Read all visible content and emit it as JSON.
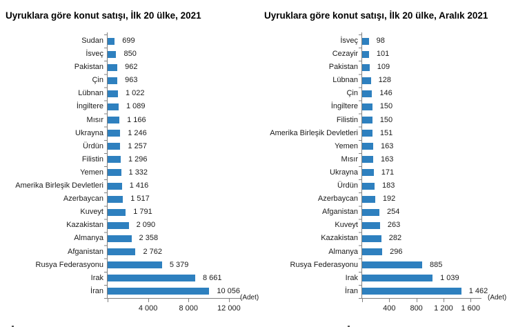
{
  "colors": {
    "bar": "#2e80bf",
    "axis": "#7f7f7f",
    "title_text": "#000000",
    "label_text": "#1a1a1a",
    "background": "#ffffff"
  },
  "chart_data": [
    {
      "type": "bar",
      "orientation": "horizontal",
      "title": "Uyruklara göre konut satışı, İlk 20 ülke, 2021",
      "unit_label": "(Adet)",
      "grid": false,
      "legend": "none",
      "xlim": [
        0,
        13100
      ],
      "categories": [
        "Sudan",
        "İsveç",
        "Pakistan",
        "Çin",
        "Lübnan",
        "İngiltere",
        "Mısır",
        "Ukrayna",
        "Ürdün",
        "Filistin",
        "Yemen",
        "Amerika Birleşik Devletleri",
        "Azerbaycan",
        "Kuveyt",
        "Kazakistan",
        "Almanya",
        "Afganistan",
        "Rusya Federasyonu",
        "Irak",
        "İran"
      ],
      "values": [
        699,
        850,
        962,
        963,
        1022,
        1089,
        1166,
        1246,
        1257,
        1296,
        1332,
        1416,
        1517,
        1791,
        2090,
        2358,
        2762,
        5379,
        8661,
        10056
      ],
      "value_labels": [
        "699",
        "850",
        "962",
        "963",
        "1 022",
        "1 089",
        "1 166",
        "1 246",
        "1 257",
        "1 296",
        "1 332",
        "1 416",
        "1 517",
        "1 791",
        "2 090",
        "2 358",
        "2 762",
        "5 379",
        "8 661",
        "10 056"
      ],
      "xticks": [
        {
          "value": 4000,
          "label": "4 000"
        },
        {
          "value": 8000,
          "label": "8 000"
        },
        {
          "value": 12000,
          "label": "12 000"
        }
      ]
    },
    {
      "type": "bar",
      "orientation": "horizontal",
      "title": "Uyruklara göre konut satışı, İlk 20 ülke, Aralık 2021",
      "unit_label": "(Adet)",
      "grid": false,
      "legend": "none",
      "xlim": [
        0,
        1750
      ],
      "categories": [
        "İsveç",
        "Cezayir",
        "Pakistan",
        "Lübnan",
        "Çin",
        "İngiltere",
        "Filistin",
        "Amerika Birleşik Devletleri",
        "Yemen",
        "Mısır",
        "Ukrayna",
        "Ürdün",
        "Azerbaycan",
        "Afganistan",
        "Kuveyt",
        "Kazakistan",
        "Almanya",
        "Rusya Federasyonu",
        "Irak",
        "İran"
      ],
      "values": [
        98,
        101,
        109,
        128,
        146,
        150,
        150,
        151,
        163,
        163,
        171,
        183,
        192,
        254,
        263,
        282,
        296,
        885,
        1039,
        1462
      ],
      "value_labels": [
        "98",
        "101",
        "109",
        "128",
        "146",
        "150",
        "150",
        "151",
        "163",
        "163",
        "171",
        "183",
        "192",
        "254",
        "263",
        "282",
        "296",
        "885",
        "1 039",
        "1 462"
      ],
      "xticks": [
        {
          "value": 400,
          "label": "400"
        },
        {
          "value": 800,
          "label": "800"
        },
        {
          "value": 1200,
          "label": "1 200"
        },
        {
          "value": 1600,
          "label": "1 600"
        }
      ]
    }
  ]
}
